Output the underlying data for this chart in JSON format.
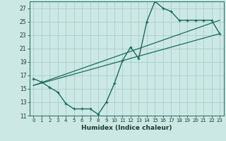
{
  "title": "",
  "xlabel": "Humidex (Indice chaleur)",
  "bg_color": "#cce8e4",
  "grid_color": "#aaceca",
  "line_color": "#1a6b5e",
  "xlim": [
    -0.5,
    23.5
  ],
  "ylim": [
    11,
    28
  ],
  "xticks": [
    0,
    1,
    2,
    3,
    4,
    5,
    6,
    7,
    8,
    9,
    10,
    11,
    12,
    13,
    14,
    15,
    16,
    17,
    18,
    19,
    20,
    21,
    22,
    23
  ],
  "yticks": [
    11,
    13,
    15,
    17,
    19,
    21,
    23,
    25,
    27
  ],
  "line1_x": [
    0,
    1,
    2,
    3,
    4,
    5,
    6,
    7,
    8,
    9,
    10,
    11,
    12,
    13,
    14,
    15,
    16,
    17,
    18,
    19,
    20,
    21,
    22,
    23
  ],
  "line1_y": [
    16.5,
    16.0,
    15.2,
    14.5,
    12.8,
    12.0,
    12.0,
    12.0,
    11.2,
    13.0,
    15.8,
    19.2,
    21.2,
    19.5,
    25.0,
    28.0,
    27.0,
    26.5,
    25.2,
    25.2,
    25.2,
    25.2,
    25.2,
    23.2
  ],
  "line2_x": [
    0,
    23
  ],
  "line2_y": [
    15.5,
    25.2
  ],
  "line3_x": [
    0,
    23
  ],
  "line3_y": [
    15.5,
    23.2
  ]
}
